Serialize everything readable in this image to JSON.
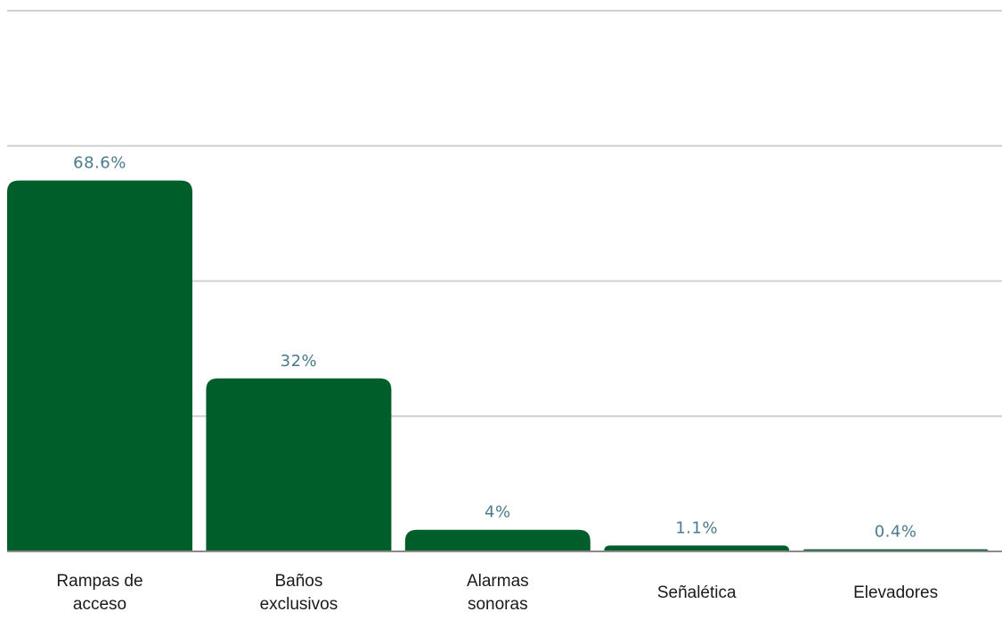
{
  "chart_data": {
    "type": "bar",
    "categories": [
      [
        "Rampas de",
        "acceso"
      ],
      [
        "Baños",
        "exclusivos"
      ],
      [
        "Alarmas",
        "sonoras"
      ],
      [
        "Señalética"
      ],
      [
        "Elevadores"
      ]
    ],
    "values": [
      68.6,
      32,
      4,
      1.1,
      0.4
    ],
    "value_labels": [
      "68.6%",
      "32%",
      "4%",
      "1.1%",
      "0.4%"
    ],
    "ylim": [
      0,
      100
    ],
    "yticks": [
      0,
      25,
      50,
      75,
      100
    ],
    "grid": true,
    "legend": "none",
    "colors": {
      "bar": "#005E2A",
      "value_label": "#4A7A8C",
      "category_label": "#1a1a1a"
    }
  }
}
